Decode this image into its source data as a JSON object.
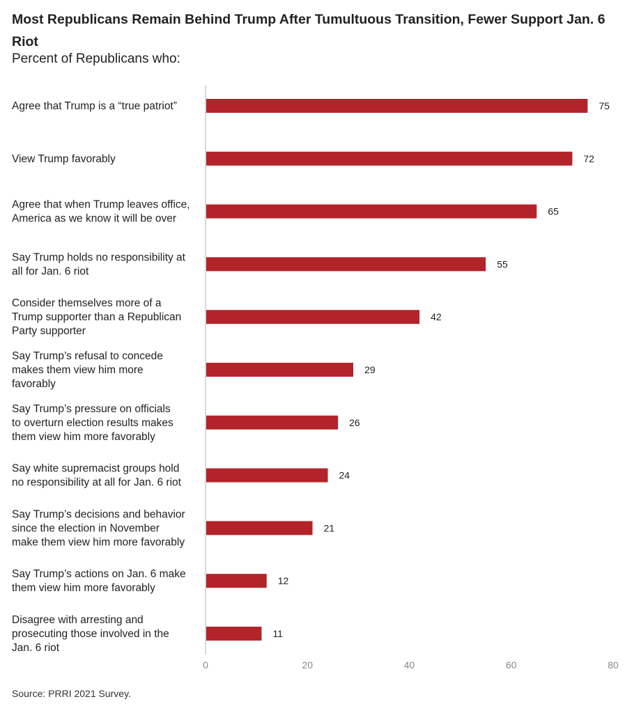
{
  "title": "Most Republicans Remain Behind Trump After Tumultuous Transition, Fewer Support Jan. 6 Riot",
  "subtitle": "Percent of Republicans who:",
  "source": "Source: PRRI 2021 Survey.",
  "colors": {
    "bar": "#b2242a",
    "axis": "#cccccc",
    "tick_text": "#888888"
  },
  "chart_data": {
    "type": "bar",
    "orientation": "horizontal",
    "categories": [
      [
        "Agree that Trump is a “true patriot”"
      ],
      [
        "View Trump favorably"
      ],
      [
        "Agree that when Trump leaves office,",
        "America as we know it will be over"
      ],
      [
        "Say Trump holds no responsibility at",
        "all for Jan. 6 riot"
      ],
      [
        "Consider themselves more of a",
        "Trump supporter than a Republican",
        "Party supporter"
      ],
      [
        "Say Trump’s refusal to concede",
        "makes them view him more",
        "favorably"
      ],
      [
        "Say Trump’s pressure on officials",
        "to overturn election results makes",
        "them view him more favorably"
      ],
      [
        "Say white supremacist groups hold",
        "no responsibility at all for Jan. 6 riot"
      ],
      [
        "Say Trump’s decisions and behavior",
        "since the election in November",
        "make them view him more favorably"
      ],
      [
        "Say Trump’s actions on Jan. 6 make",
        "them view him more favorably"
      ],
      [
        "Disagree with arresting and",
        "prosecuting those involved in the",
        "Jan. 6 riot"
      ]
    ],
    "values": [
      75,
      72,
      65,
      55,
      42,
      29,
      26,
      24,
      21,
      12,
      11
    ],
    "xlim": [
      0,
      80
    ],
    "xticks": [
      0,
      20,
      40,
      60,
      80
    ],
    "grid": false
  }
}
